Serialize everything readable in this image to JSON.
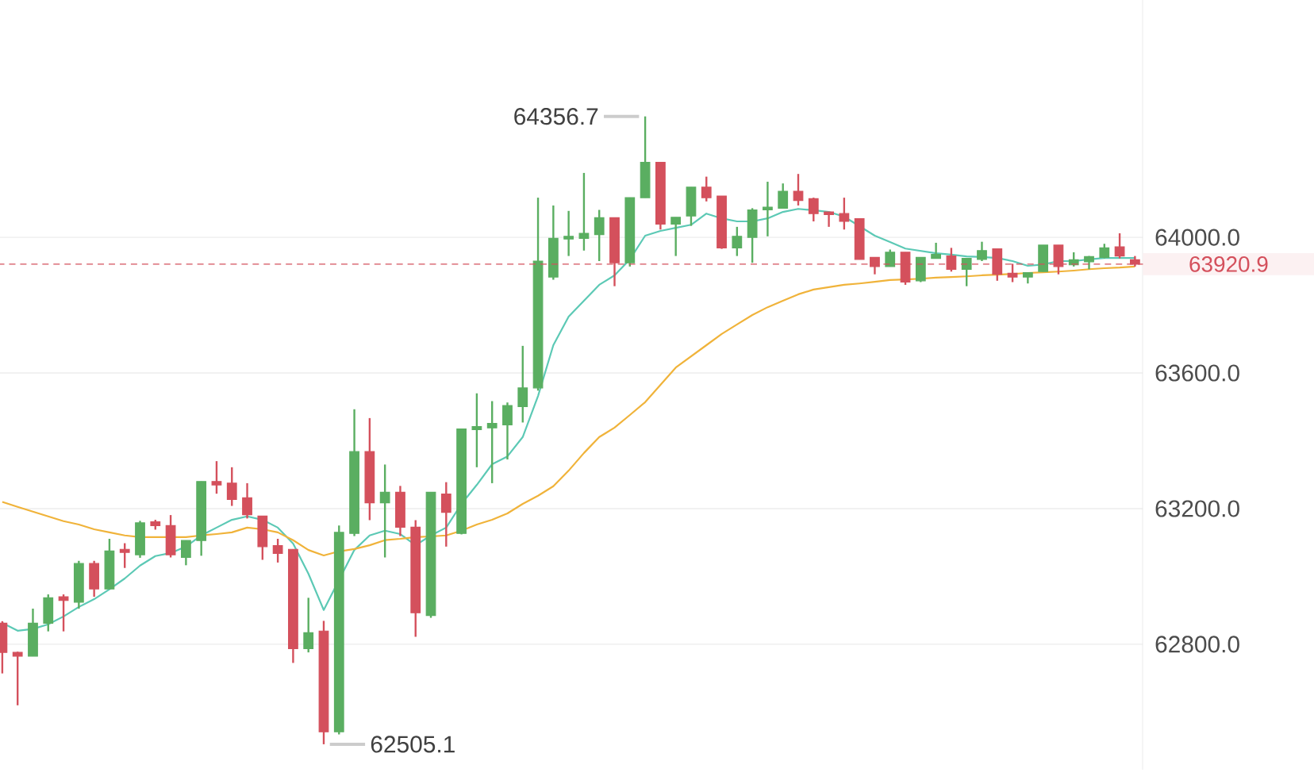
{
  "chart_data": {
    "type": "candlestick",
    "categories": [
      null,
      null,
      null,
      null,
      null,
      null,
      null,
      null,
      null,
      null,
      null,
      null,
      null,
      null,
      null,
      null,
      null,
      null,
      null,
      null,
      null,
      null,
      null,
      null,
      null,
      null,
      null,
      null,
      null,
      null,
      null,
      null,
      null,
      null,
      null,
      null,
      null,
      null,
      null,
      null,
      null,
      null,
      null,
      null,
      null,
      null,
      null,
      null,
      null,
      null,
      null,
      null,
      null,
      null,
      null,
      null,
      null,
      null,
      null,
      null,
      null,
      null,
      null,
      null,
      null,
      null,
      null,
      null,
      null,
      null,
      null,
      null,
      null,
      null,
      null
    ],
    "ohlc": [
      [
        62862,
        62868,
        62714,
        62776
      ],
      [
        62776,
        62778,
        62620,
        62765
      ],
      [
        62765,
        62905,
        62765,
        62862
      ],
      [
        62862,
        62947,
        62838,
        62937
      ],
      [
        62940,
        62947,
        62838,
        62929
      ],
      [
        62924,
        63046,
        62905,
        63038
      ],
      [
        63038,
        63046,
        62940,
        62963
      ],
      [
        62963,
        63111,
        62963,
        63075
      ],
      [
        63080,
        63098,
        63025,
        63071
      ],
      [
        63064,
        63164,
        63055,
        63158
      ],
      [
        63161,
        63167,
        63138,
        63150
      ],
      [
        63150,
        63181,
        63056,
        63064
      ],
      [
        63056,
        63106,
        63033,
        63106
      ],
      [
        63106,
        63280,
        63061,
        63280
      ],
      [
        63280,
        63340,
        63244,
        63270
      ],
      [
        63275,
        63322,
        63208,
        63227
      ],
      [
        63232,
        63275,
        63171,
        63182
      ],
      [
        63178,
        63178,
        63049,
        63088
      ],
      [
        63091,
        63111,
        63041,
        63068
      ],
      [
        63080,
        63080,
        62745,
        62787
      ],
      [
        62787,
        62937,
        62776,
        62834
      ],
      [
        62839,
        62869,
        62505.1,
        62542
      ],
      [
        62542,
        63150,
        62534,
        63130
      ],
      [
        63127,
        63493,
        63119,
        63368
      ],
      [
        63368,
        63467,
        63166,
        63217
      ],
      [
        63217,
        63330,
        63056,
        63248
      ],
      [
        63248,
        63267,
        63119,
        63145
      ],
      [
        63145,
        63166,
        62822,
        62893
      ],
      [
        62885,
        63248,
        62878,
        63248
      ],
      [
        63243,
        63278,
        63088,
        63189
      ],
      [
        63127,
        63435,
        63124,
        63435
      ],
      [
        63433,
        63540,
        63322,
        63442
      ],
      [
        63438,
        63517,
        63275,
        63451
      ],
      [
        63447,
        63513,
        63345,
        63504
      ],
      [
        63501,
        63680,
        63454,
        63556
      ],
      [
        63556,
        64117,
        63548,
        63930
      ],
      [
        63883,
        64094,
        63875,
        63997
      ],
      [
        63995,
        64078,
        63945,
        64003
      ],
      [
        63997,
        64190,
        63961,
        64012
      ],
      [
        64008,
        64081,
        63930,
        64058
      ],
      [
        64058,
        64058,
        63856,
        63925
      ],
      [
        63925,
        64117,
        63914,
        64117
      ],
      [
        64117,
        64356.7,
        64117,
        64221
      ],
      [
        64221,
        64221,
        64023,
        64039
      ],
      [
        64039,
        64059,
        63945,
        64059
      ],
      [
        64063,
        64148,
        64034,
        64148
      ],
      [
        64148,
        64179,
        64106,
        64117
      ],
      [
        64122,
        64122,
        63966,
        63969
      ],
      [
        63969,
        64031,
        63945,
        64003
      ],
      [
        64000,
        64086,
        63925,
        64081
      ],
      [
        64081,
        64164,
        64003,
        64089
      ],
      [
        64086,
        64159,
        64086,
        64136
      ],
      [
        64136,
        64187,
        64094,
        64109
      ],
      [
        64114,
        64117,
        64047,
        64070
      ],
      [
        64075,
        64075,
        64031,
        64067
      ],
      [
        64070,
        64117,
        64023,
        64047
      ],
      [
        64055,
        64055,
        63935,
        63935
      ],
      [
        63941,
        63941,
        63891,
        63914
      ],
      [
        63914,
        63964,
        63914,
        63956
      ],
      [
        63956,
        63956,
        63860,
        63868
      ],
      [
        63872,
        63941,
        63868,
        63941
      ],
      [
        63938,
        63984,
        63938,
        63950
      ],
      [
        63945,
        63969,
        63899,
        63906
      ],
      [
        63906,
        63938,
        63856,
        63938
      ],
      [
        63935,
        63987,
        63930,
        63961
      ],
      [
        63966,
        63966,
        63872,
        63891
      ],
      [
        63894,
        63922,
        63868,
        63883
      ],
      [
        63883,
        63896,
        63864,
        63896
      ],
      [
        63899,
        63977,
        63899,
        63977
      ],
      [
        63977,
        63977,
        63891,
        63914
      ],
      [
        63919,
        63956,
        63914,
        63934
      ],
      [
        63928,
        63945,
        63906,
        63943
      ],
      [
        63941,
        63981,
        63938,
        63969
      ],
      [
        63972,
        64012,
        63938,
        63945
      ],
      [
        63934,
        63945,
        63914,
        63920.9
      ]
    ],
    "colors": [
      "#d4505c",
      "#d4505c",
      "#5aae61",
      "#5aae61",
      "#d4505c",
      "#5aae61",
      "#d4505c",
      "#5aae61",
      "#d4505c",
      "#5aae61",
      "#d4505c",
      "#d4505c",
      "#5aae61",
      "#5aae61",
      "#d4505c",
      "#d4505c",
      "#d4505c",
      "#d4505c",
      "#d4505c",
      "#d4505c",
      "#5aae61",
      "#d4505c",
      "#5aae61",
      "#5aae61",
      "#d4505c",
      "#5aae61",
      "#d4505c",
      "#d4505c",
      "#5aae61",
      "#d4505c",
      "#5aae61",
      "#5aae61",
      "#5aae61",
      "#5aae61",
      "#5aae61",
      "#5aae61",
      "#5aae61",
      "#5aae61",
      "#5aae61",
      "#5aae61",
      "#d4505c",
      "#5aae61",
      "#5aae61",
      "#d4505c",
      "#5aae61",
      "#5aae61",
      "#d4505c",
      "#d4505c",
      "#5aae61",
      "#5aae61",
      "#5aae61",
      "#5aae61",
      "#d4505c",
      "#d4505c",
      "#d4505c",
      "#d4505c",
      "#d4505c",
      "#d4505c",
      "#5aae61",
      "#d4505c",
      "#5aae61",
      "#5aae61",
      "#d4505c",
      "#5aae61",
      "#5aae61",
      "#d4505c",
      "#d4505c",
      "#5aae61",
      "#5aae61",
      "#d4505c",
      "#5aae61",
      "#5aae61",
      "#5aae61",
      "#d4505c",
      "#d4505c"
    ],
    "series": [
      {
        "type": "line",
        "color": "#5cc9b5",
        "values": [
          62863,
          62840,
          62845,
          62859,
          62882,
          62910,
          62933,
          62962,
          62994,
          63032,
          63060,
          63069,
          63088,
          63121,
          63144,
          63167,
          63177,
          63167,
          63144,
          63097,
          63008,
          62901,
          null,
          63078,
          63121,
          63135,
          63125,
          63092,
          63121,
          63144,
          63214,
          63270,
          63331,
          63354,
          63411,
          63532,
          63682,
          63766,
          63813,
          63860,
          63888,
          63935,
          64005,
          64019,
          64028,
          64037,
          64070,
          64056,
          64047,
          64047,
          64056,
          64075,
          64084,
          64080,
          64075,
          64061,
          64033,
          64005,
          63986,
          63967,
          63960,
          63953,
          63949,
          63944,
          63942,
          63939,
          63930,
          63916,
          63920,
          63930,
          63930,
          63935,
          63939,
          63939,
          63939
        ]
      },
      {
        "type": "line",
        "color": "#f0b33a",
        "values": [
          63220,
          63205,
          63191,
          63177,
          63163,
          63153,
          63139,
          63130,
          63121,
          63116,
          63116,
          63116,
          63116,
          63121,
          63125,
          63130,
          63144,
          63139,
          63130,
          63107,
          63078,
          63062,
          63074,
          63081,
          63092,
          63107,
          63111,
          63116,
          63118,
          63121,
          63135,
          63153,
          63167,
          63186,
          63214,
          63238,
          63266,
          63312,
          63364,
          63411,
          63439,
          63476,
          63514,
          63565,
          63616,
          63649,
          63682,
          63715,
          63743,
          63771,
          63794,
          63813,
          63832,
          63846,
          63853,
          63860,
          63864,
          63869,
          63874,
          63876,
          63878,
          63881,
          63883,
          63885,
          63888,
          63890,
          63892,
          63895,
          63897,
          63899,
          63902,
          63906,
          63909,
          63911,
          63914
        ]
      }
    ],
    "ylim": [
      62430,
      64700
    ],
    "yticks": [
      {
        "value": 62800,
        "label": "62800.0"
      },
      {
        "value": 63200,
        "label": "63200.0"
      },
      {
        "value": 63600,
        "label": "63600.0"
      },
      {
        "value": 64000,
        "label": "64000.0"
      }
    ],
    "grid": "y",
    "tick_labels": "y",
    "ref_lines": [
      {
        "axis": "y",
        "value": 63920.9,
        "label": "63920.9",
        "color": "#d4505c",
        "line_style": "dashed"
      }
    ],
    "annotations": [
      "64356.7",
      "62505.1"
    ]
  }
}
